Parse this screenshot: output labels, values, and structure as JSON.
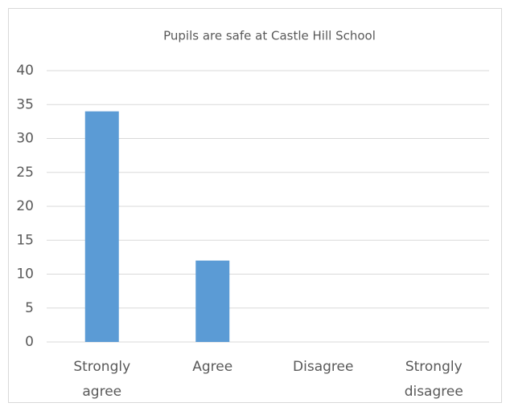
{
  "chart_data": {
    "type": "bar",
    "title": "Pupils are safe at Castle Hill School",
    "categories": [
      "Strongly agree",
      "Agree",
      "Disagree",
      "Strongly disagree"
    ],
    "values": [
      34,
      12,
      0,
      0
    ],
    "color": "#5b9bd5",
    "ylim": [
      0,
      40
    ],
    "yticks": [
      0,
      5,
      10,
      15,
      20,
      25,
      30,
      35,
      40
    ],
    "grid": true
  }
}
